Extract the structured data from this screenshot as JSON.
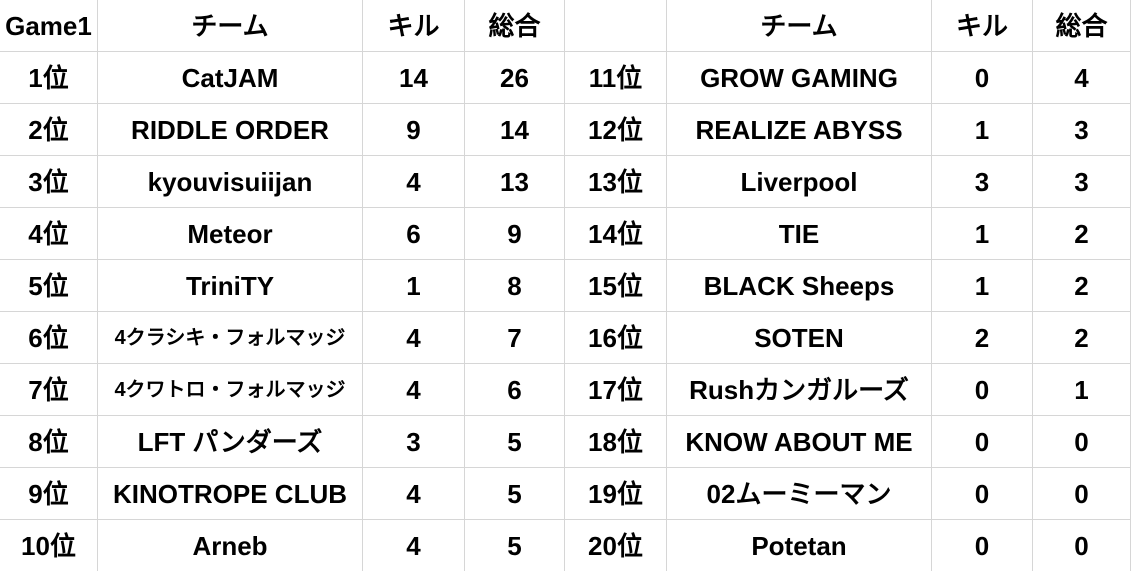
{
  "colors": {
    "background": "#ffffff",
    "text": "#000000",
    "gridline": "#d6d6d6"
  },
  "chart_data": {
    "type": "table",
    "title": "Game1",
    "sections": [
      {
        "header": {
          "rank": "Game1",
          "team": "チーム",
          "kills": "キル",
          "total": "総合"
        },
        "rows": [
          {
            "rank": "1位",
            "team": "CatJAM",
            "kills": "14",
            "total": "26"
          },
          {
            "rank": "2位",
            "team": "RIDDLE ORDER",
            "kills": "9",
            "total": "14"
          },
          {
            "rank": "3位",
            "team": "kyouvisuiijan",
            "kills": "4",
            "total": "13"
          },
          {
            "rank": "4位",
            "team": "Meteor",
            "kills": "6",
            "total": "9"
          },
          {
            "rank": "5位",
            "team": "TriniTY",
            "kills": "1",
            "total": "8"
          },
          {
            "rank": "6位",
            "team": "4クラシキ・フォルマッジ",
            "kills": "4",
            "total": "7",
            "small": true
          },
          {
            "rank": "7位",
            "team": "4クワトロ・フォルマッジ",
            "kills": "4",
            "total": "6",
            "small": true
          },
          {
            "rank": "8位",
            "team": "LFT パンダーズ",
            "kills": "3",
            "total": "5"
          },
          {
            "rank": "9位",
            "team": "KINOTROPE CLUB",
            "kills": "4",
            "total": "5"
          },
          {
            "rank": "10位",
            "team": "Arneb",
            "kills": "4",
            "total": "5"
          }
        ]
      },
      {
        "header": {
          "rank": "",
          "team": "チーム",
          "kills": "キル",
          "total": "総合"
        },
        "rows": [
          {
            "rank": "11位",
            "team": "GROW GAMING",
            "kills": "0",
            "total": "4"
          },
          {
            "rank": "12位",
            "team": "REALIZE ABYSS",
            "kills": "1",
            "total": "3"
          },
          {
            "rank": "13位",
            "team": "Liverpool",
            "kills": "3",
            "total": "3"
          },
          {
            "rank": "14位",
            "team": "TIE",
            "kills": "1",
            "total": "2"
          },
          {
            "rank": "15位",
            "team": "BLACK Sheeps",
            "kills": "1",
            "total": "2"
          },
          {
            "rank": "16位",
            "team": "SOTEN",
            "kills": "2",
            "total": "2"
          },
          {
            "rank": "17位",
            "team": "Rushカンガルーズ",
            "kills": "0",
            "total": "1"
          },
          {
            "rank": "18位",
            "team": "KNOW ABOUT ME",
            "kills": "0",
            "total": "0"
          },
          {
            "rank": "19位",
            "team": "02ムーミーマン",
            "kills": "0",
            "total": "0"
          },
          {
            "rank": "20位",
            "team": "Potetan",
            "kills": "0",
            "total": "0"
          }
        ]
      }
    ]
  }
}
